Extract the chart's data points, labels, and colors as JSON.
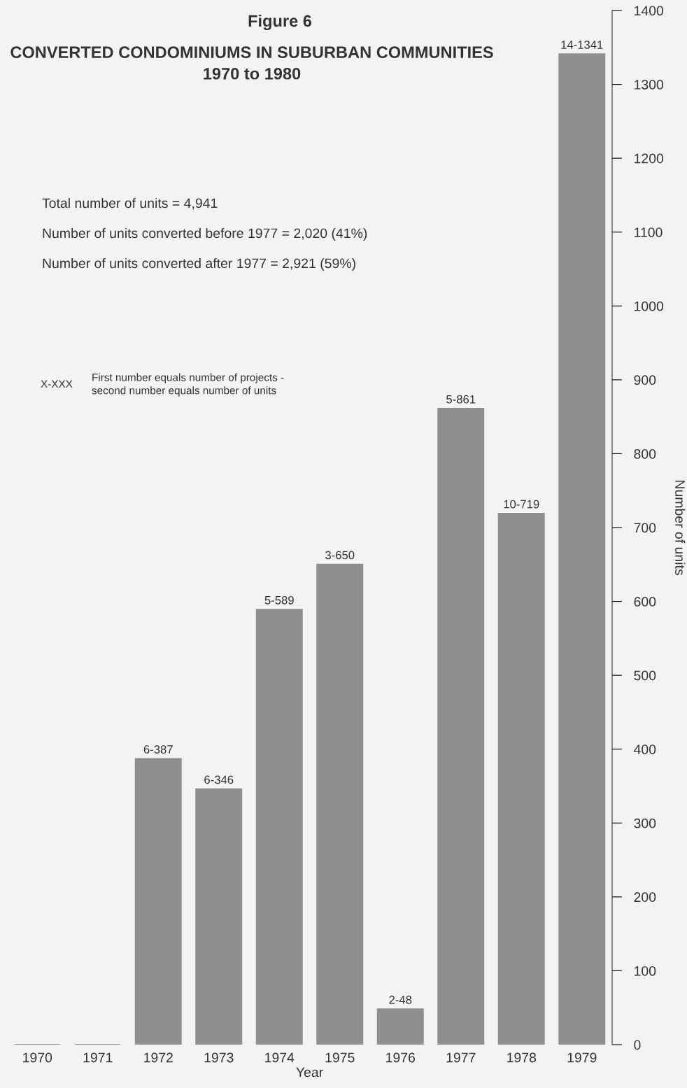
{
  "chart_data": {
    "type": "bar",
    "title": "Figure 6",
    "subtitle": "CONVERTED CONDOMINIUMS IN SUBURBAN COMMUNITIES\n1970 to 1980",
    "xlabel": "Year",
    "ylabel": "Number of units",
    "categories": [
      "1970",
      "1971",
      "1972",
      "1973",
      "1974",
      "1975",
      "1976",
      "1977",
      "1978",
      "1979"
    ],
    "values": [
      0,
      0,
      387,
      346,
      589,
      650,
      48,
      861,
      719,
      1341
    ],
    "value_labels": [
      null,
      null,
      "6-387",
      "6-346",
      "5-589",
      "3-650",
      "2-48",
      "5-861",
      "10-719",
      "14-1341"
    ],
    "color": "#8f8f8f",
    "ylim": [
      0,
      1400
    ],
    "yticks": [
      0,
      100,
      200,
      300,
      400,
      500,
      600,
      700,
      800,
      900,
      1000,
      1100,
      1200,
      1300,
      1400
    ],
    "grid": false,
    "annotations": [
      "Total number of units = 4,941",
      "Number of units converted before 1977 = 2,020 (41%)",
      "Number of units converted after 1977 = 2,921 (59%)",
      "X-XXX",
      "First number equals number of projects -\nsecond number equals number of units"
    ]
  }
}
